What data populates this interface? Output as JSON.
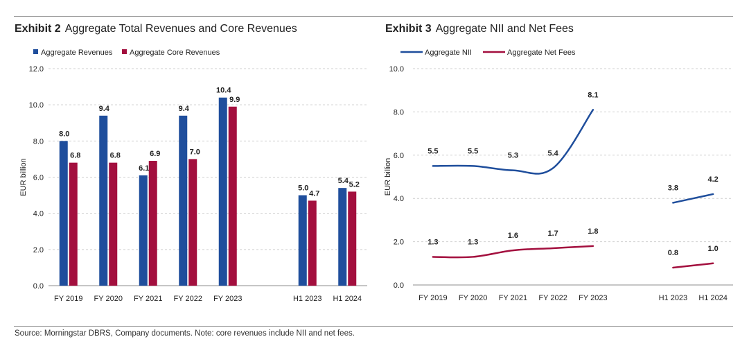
{
  "exhibits": [
    {
      "number": "Exhibit 2",
      "title": "Aggregate Total Revenues and Core Revenues"
    },
    {
      "number": "Exhibit 3",
      "title": "Aggregate NII and Net Fees"
    }
  ],
  "source": "Source: Morningstar DBRS, Company documents. Note: core revenues include NII and net fees.",
  "colors": {
    "blue": "#1f4e9c",
    "red": "#a30f3e",
    "grid": "#cfcfcf",
    "axis": "#8c8c8c"
  },
  "chart_data": [
    {
      "type": "bar",
      "title": "Aggregate Total Revenues and Core Revenues",
      "categories": [
        "FY 2019",
        "FY 2020",
        "FY 2021",
        "FY 2022",
        "FY 2023",
        "",
        "H1 2023",
        "H1 2024"
      ],
      "series": [
        {
          "name": "Aggregate Revenues",
          "values": [
            8.0,
            9.4,
            6.1,
            9.4,
            10.4,
            null,
            5.0,
            5.4
          ]
        },
        {
          "name": "Aggregate Core Revenues",
          "values": [
            6.8,
            6.8,
            6.9,
            7.0,
            9.9,
            null,
            4.7,
            5.2
          ]
        }
      ],
      "ylabel": "EUR billion",
      "ylim": [
        0,
        12
      ],
      "yticks": [
        "0.0",
        "2.0",
        "4.0",
        "6.0",
        "8.0",
        "10.0",
        "12.0"
      ],
      "legend": "top-left",
      "grid": true
    },
    {
      "type": "line",
      "title": "Aggregate NII and Net Fees",
      "categories": [
        "FY 2019",
        "FY 2020",
        "FY 2021",
        "FY 2022",
        "FY 2023",
        "",
        "H1 2023",
        "H1 2024"
      ],
      "series": [
        {
          "name": "Aggregate NII",
          "values": [
            5.5,
            5.5,
            5.3,
            5.4,
            8.1,
            null,
            3.8,
            4.2
          ],
          "labels": [
            "5.5",
            "5.5",
            "5.3",
            "5.4",
            "8.1",
            null,
            "3.8",
            "4.2"
          ]
        },
        {
          "name": "Aggregate Net Fees",
          "values": [
            1.3,
            1.3,
            1.6,
            1.7,
            1.8,
            null,
            0.8,
            1.0
          ],
          "labels": [
            "1.3",
            "1.3",
            "1.6",
            "1.7",
            "1.8",
            null,
            "0.8",
            "1.0"
          ]
        }
      ],
      "ylabel": "EUR billion",
      "ylim": [
        0,
        10
      ],
      "yticks": [
        "0.0",
        "2.0",
        "4.0",
        "6.0",
        "8.0",
        "10.0"
      ],
      "legend": "top-left",
      "grid": true
    }
  ]
}
